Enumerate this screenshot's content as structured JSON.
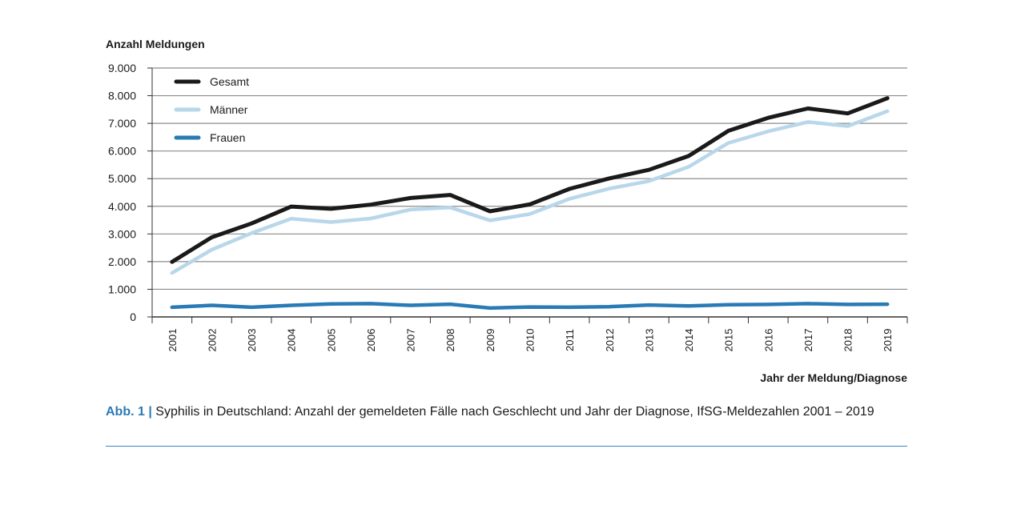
{
  "chart_data": {
    "type": "line",
    "ylabel": "Anzahl Meldungen",
    "xlabel": "Jahr der Meldung/Diagnose",
    "ylim": [
      0,
      9000
    ],
    "y_ticks": [
      "0",
      "1.000",
      "2.000",
      "3.000",
      "4.000",
      "5.000",
      "6.000",
      "7.000",
      "8.000",
      "9.000"
    ],
    "y_tick_values": [
      0,
      1000,
      2000,
      3000,
      4000,
      5000,
      6000,
      7000,
      8000,
      9000
    ],
    "grid": true,
    "legend_position": "top-left",
    "categories": [
      "2001",
      "2002",
      "2003",
      "2004",
      "2005",
      "2006",
      "2007",
      "2008",
      "2009",
      "2010",
      "2011",
      "2012",
      "2013",
      "2014",
      "2015",
      "2016",
      "2017",
      "2018",
      "2019"
    ],
    "series": [
      {
        "name": "Gesamt",
        "color": "#1a1a1a",
        "values": [
          1990,
          2880,
          3380,
          3990,
          3910,
          4060,
          4300,
          4410,
          3820,
          4070,
          4630,
          5010,
          5320,
          5820,
          6730,
          7200,
          7540,
          7360,
          7910
        ]
      },
      {
        "name": "Männer",
        "color": "#b8d7ea",
        "values": [
          1590,
          2430,
          3030,
          3550,
          3430,
          3560,
          3880,
          3960,
          3490,
          3720,
          4270,
          4640,
          4910,
          5430,
          6290,
          6710,
          7050,
          6900,
          7440
        ]
      },
      {
        "name": "Frauen",
        "color": "#2a7ab5",
        "values": [
          350,
          420,
          350,
          420,
          470,
          480,
          420,
          460,
          320,
          360,
          350,
          370,
          430,
          400,
          440,
          450,
          480,
          450,
          460
        ]
      }
    ]
  },
  "caption": {
    "prefix": "Abb. 1 |",
    "text": "Syphilis in Deutschland: Anzahl der gemeldeten Fälle nach Geschlecht und Jahr der Diagnose, IfSG-Meldezahlen 2001 – 2019"
  }
}
